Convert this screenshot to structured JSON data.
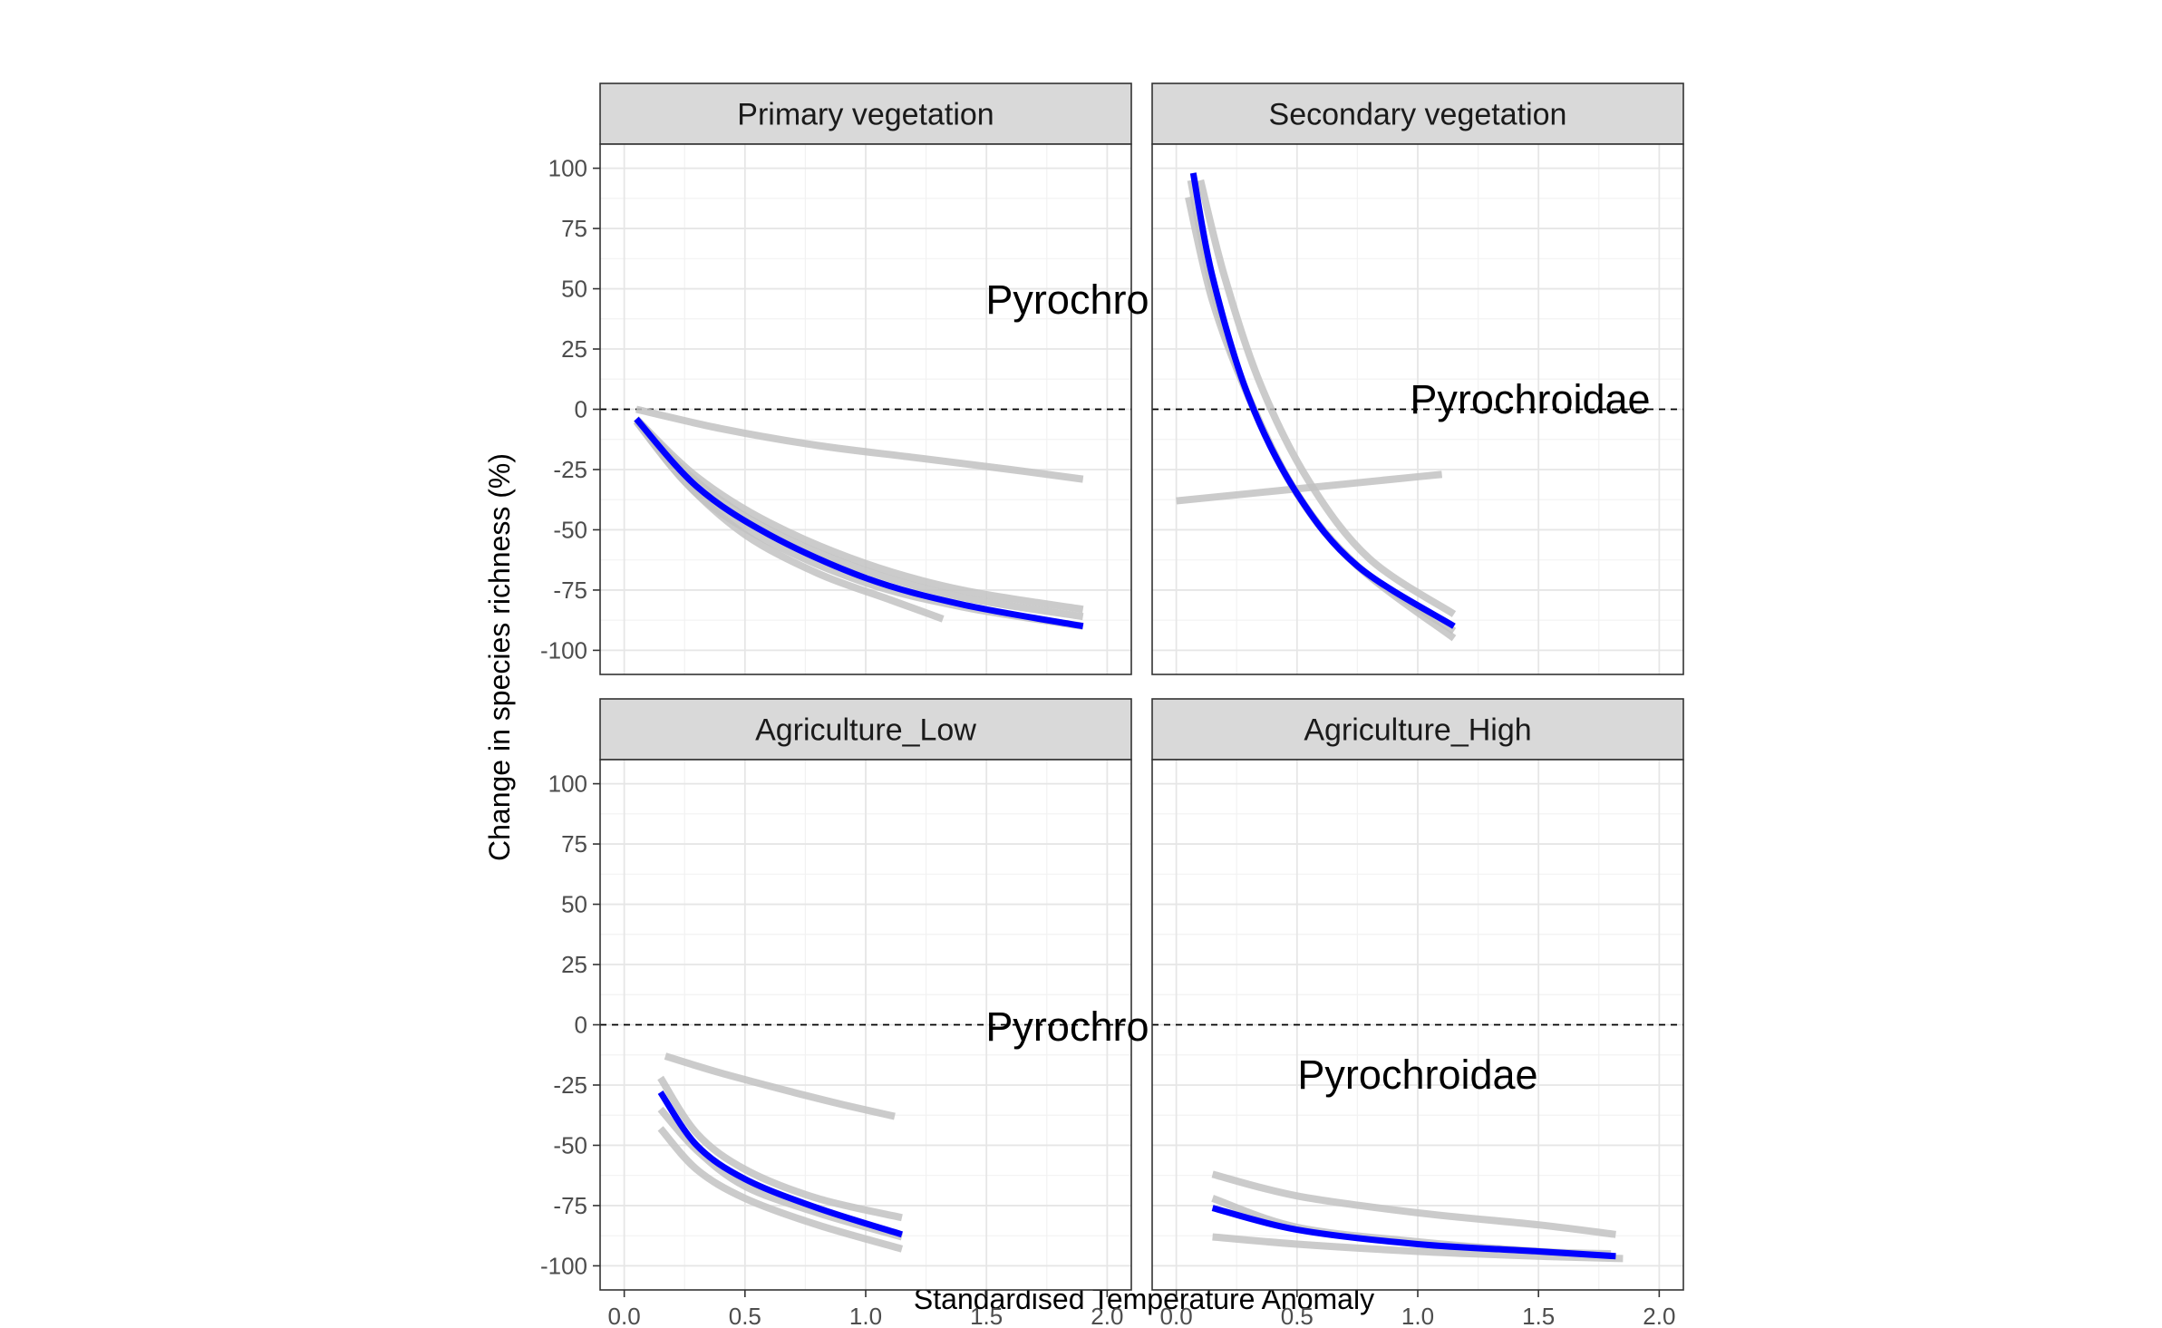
{
  "chart_data": {
    "type": "line",
    "xlabel": "Standardised Temperature Anomaly",
    "ylabel": "Change in species richness (%)",
    "xlim": [
      -0.1,
      2.1
    ],
    "ylim": [
      -110,
      110
    ],
    "x_ticks": [
      "0.0",
      "0.5",
      "1.0",
      "1.5",
      "2.0"
    ],
    "y_ticks": [
      "-100",
      "-75",
      "-50",
      "-25",
      "0",
      "25",
      "50",
      "75",
      "100"
    ],
    "reference_line": 0,
    "grid": true,
    "colors": {
      "mean": "#0000ff",
      "samples": "#c2c2c2",
      "strip_fill": "#d9d9d9",
      "reference": "#000000"
    },
    "panels": [
      {
        "strip": "Primary vegetation",
        "annotation": "Pyrochroidae",
        "series": [
          {
            "role": "sample",
            "x": [
              0.05,
              0.4,
              0.8,
              1.2,
              1.6,
              1.9
            ],
            "y": [
              0,
              -8,
              -15,
              -20,
              -25,
              -29
            ]
          },
          {
            "role": "sample",
            "x": [
              0.05,
              0.25,
              0.5,
              0.8,
              1.1,
              1.32
            ],
            "y": [
              -5,
              -30,
              -52,
              -68,
              -79,
              -87
            ]
          },
          {
            "role": "sample",
            "x": [
              0.05,
              0.3,
              0.6,
              1.0,
              1.4,
              1.9
            ],
            "y": [
              -4,
              -30,
              -50,
              -67,
              -78,
              -86
            ]
          },
          {
            "role": "sample",
            "x": [
              0.05,
              0.3,
              0.6,
              1.0,
              1.4,
              1.9
            ],
            "y": [
              -4,
              -28,
              -47,
              -64,
              -75,
              -83
            ]
          },
          {
            "role": "sample",
            "x": [
              0.05,
              0.3,
              0.6,
              1.0,
              1.4,
              1.9
            ],
            "y": [
              -5,
              -35,
              -55,
              -72,
              -82,
              -90
            ]
          },
          {
            "role": "mean",
            "x": [
              0.05,
              0.3,
              0.6,
              1.0,
              1.4,
              1.9
            ],
            "y": [
              -4,
              -32,
              -52,
              -70,
              -81,
              -90
            ]
          }
        ]
      },
      {
        "strip": "Secondary vegetation",
        "annotation": "Pyrochroidae",
        "series": [
          {
            "role": "sample",
            "x": [
              0.0,
              0.5,
              1.0,
              1.1
            ],
            "y": [
              -38,
              -33,
              -28,
              -27
            ]
          },
          {
            "role": "sample",
            "x": [
              0.05,
              0.15,
              0.3,
              0.5,
              0.75,
              1.15
            ],
            "y": [
              88,
              45,
              5,
              -35,
              -65,
              -95
            ]
          },
          {
            "role": "sample",
            "x": [
              0.1,
              0.2,
              0.35,
              0.55,
              0.8,
              1.15
            ],
            "y": [
              95,
              55,
              10,
              -30,
              -62,
              -85
            ]
          },
          {
            "role": "sample",
            "x": [
              0.06,
              0.15,
              0.3,
              0.5,
              0.75,
              1.15
            ],
            "y": [
              95,
              50,
              5,
              -35,
              -65,
              -92
            ]
          },
          {
            "role": "mean",
            "x": [
              0.07,
              0.15,
              0.3,
              0.5,
              0.75,
              1.15
            ],
            "y": [
              98,
              55,
              5,
              -35,
              -65,
              -90
            ]
          }
        ]
      },
      {
        "strip": "Agriculture_Low",
        "annotation": "Pyrochroidae",
        "series": [
          {
            "role": "sample",
            "x": [
              0.17,
              0.4,
              0.7,
              0.9,
              1.12
            ],
            "y": [
              -13,
              -20,
              -28,
              -33,
              -38
            ]
          },
          {
            "role": "sample",
            "x": [
              0.15,
              0.3,
              0.5,
              0.8,
              1.15
            ],
            "y": [
              -43,
              -60,
              -72,
              -83,
              -93
            ]
          },
          {
            "role": "sample",
            "x": [
              0.15,
              0.3,
              0.5,
              0.8,
              1.15
            ],
            "y": [
              -22,
              -45,
              -60,
              -72,
              -80
            ]
          },
          {
            "role": "sample",
            "x": [
              0.15,
              0.3,
              0.5,
              0.8,
              1.15
            ],
            "y": [
              -35,
              -52,
              -67,
              -78,
              -88
            ]
          },
          {
            "role": "mean",
            "x": [
              0.15,
              0.3,
              0.5,
              0.8,
              1.15
            ],
            "y": [
              -28,
              -50,
              -64,
              -76,
              -87
            ]
          }
        ]
      },
      {
        "strip": "Agriculture_High",
        "annotation": "Pyrochroidae",
        "series": [
          {
            "role": "sample",
            "x": [
              0.15,
              0.5,
              1.0,
              1.5,
              1.82
            ],
            "y": [
              -62,
              -71,
              -78,
              -83,
              -87
            ]
          },
          {
            "role": "sample",
            "x": [
              0.15,
              0.5,
              1.0,
              1.5,
              1.85
            ],
            "y": [
              -88,
              -91,
              -94,
              -96,
              -97
            ]
          },
          {
            "role": "sample",
            "x": [
              0.15,
              0.5,
              1.0,
              1.5,
              1.8
            ],
            "y": [
              -72,
              -84,
              -90,
              -94,
              -95
            ]
          },
          {
            "role": "mean",
            "x": [
              0.15,
              0.5,
              1.0,
              1.5,
              1.82
            ],
            "y": [
              -76,
              -85,
              -91,
              -94,
              -96
            ]
          }
        ]
      }
    ]
  }
}
